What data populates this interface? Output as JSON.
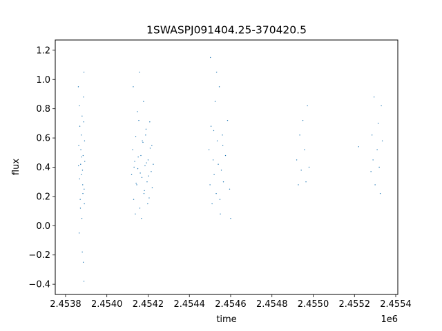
{
  "chart_data": {
    "type": "scatter",
    "title": "1SWASPJ091404.25-370420.5",
    "xlabel": "time",
    "ylabel": "flux",
    "x_offset_label": "1e6",
    "xlim": [
      2.45375,
      2.45541
    ],
    "ylim": [
      -0.47,
      1.27
    ],
    "xticks": [
      2.4538,
      2.454,
      2.4542,
      2.4544,
      2.4546,
      2.4548,
      2.455,
      2.4552,
      2.4554
    ],
    "xtick_labels": [
      "2.4538",
      "2.4540",
      "2.4542",
      "2.4544",
      "2.4546",
      "2.4548",
      "2.4550",
      "2.4552",
      "2.4554"
    ],
    "yticks": [
      -0.4,
      -0.2,
      0.0,
      0.2,
      0.4,
      0.6,
      0.8,
      1.0,
      1.2
    ],
    "ytick_labels": [
      "−0.4",
      "−0.2",
      "0.0",
      "0.2",
      "0.4",
      "0.6",
      "0.8",
      "1.0",
      "1.2"
    ],
    "grid": false,
    "marker_color": "#1f77b4",
    "series": [
      {
        "x": [
          2.453862,
          2.453864,
          2.453868,
          2.453871,
          2.453873,
          2.453876,
          2.453879,
          2.453882,
          2.453885,
          2.453888,
          2.45389,
          2.453893,
          2.453866,
          2.453874,
          2.453881,
          2.453887,
          2.453891,
          2.453869,
          2.453877,
          2.453884,
          2.453889,
          2.453892,
          2.453863,
          2.453872,
          2.45388,
          2.453886,
          2.453878,
          2.453867,
          2.453883,
          2.453889
        ],
        "y": [
          0.95,
          0.55,
          0.32,
          0.18,
          0.42,
          0.62,
          0.05,
          0.38,
          0.48,
          0.71,
          0.25,
          0.44,
          -0.05,
          0.52,
          -0.18,
          0.88,
          0.15,
          0.68,
          0.35,
          0.22,
          1.05,
          0.58,
          0.41,
          0.12,
          0.75,
          -0.25,
          0.47,
          0.82,
          0.28,
          -0.38
        ]
      },
      {
        "x": [
          2.45412,
          2.454125,
          2.45413,
          2.454135,
          2.45414,
          2.454145,
          2.45415,
          2.454155,
          2.45416,
          2.454165,
          2.45417,
          2.454175,
          2.45418,
          2.454185,
          2.45419,
          2.454195,
          2.4542,
          2.454205,
          2.45421,
          2.454215,
          2.45422,
          2.454225,
          2.454128,
          2.454138,
          2.454148,
          2.454158,
          2.454168,
          2.454178,
          2.454188,
          2.454198,
          2.454208,
          2.454218,
          2.454132,
          2.454142,
          2.454152,
          2.454162,
          2.454172,
          2.454182,
          2.454192,
          2.454202
        ],
        "y": [
          0.35,
          0.52,
          0.18,
          0.44,
          0.61,
          0.28,
          0.39,
          0.72,
          0.12,
          0.48,
          0.33,
          0.57,
          0.22,
          0.41,
          0.66,
          0.3,
          0.45,
          0.19,
          0.53,
          0.37,
          0.26,
          0.42,
          0.95,
          0.08,
          0.78,
          1.05,
          0.05,
          0.85,
          0.62,
          0.15,
          0.71,
          0.55,
          0.4,
          0.29,
          0.47,
          0.36,
          0.58,
          0.24,
          0.43,
          0.34
        ]
      },
      {
        "x": [
          2.454495,
          2.4545,
          2.454505,
          2.45451,
          2.454515,
          2.45452,
          2.454525,
          2.45453,
          2.454535,
          2.45454,
          2.454545,
          2.45455,
          2.454555,
          2.45456,
          2.454565,
          2.454575,
          2.454585,
          2.454595,
          2.4546,
          2.454502,
          2.454518,
          2.454532,
          2.454548,
          2.454562
        ],
        "y": [
          0.52,
          0.28,
          0.68,
          0.15,
          0.45,
          0.35,
          0.85,
          0.22,
          0.58,
          0.42,
          0.95,
          0.08,
          0.38,
          0.62,
          0.3,
          0.48,
          0.72,
          0.25,
          0.05,
          1.15,
          0.65,
          1.05,
          0.18,
          0.55
        ]
      },
      {
        "x": [
          2.45492,
          2.454928,
          2.454935,
          2.454942,
          2.45495,
          2.454958,
          2.454965,
          2.454972,
          2.45498
        ],
        "y": [
          0.45,
          0.28,
          0.62,
          0.38,
          0.72,
          0.52,
          0.3,
          0.82,
          0.4
        ]
      },
      {
        "x": [
          2.45522,
          2.45528,
          2.455285,
          2.45529,
          2.455295,
          2.4553,
          2.45531,
          2.455315,
          2.45532,
          2.455325,
          2.45533,
          2.455335
        ],
        "y": [
          0.54,
          0.37,
          0.62,
          0.45,
          0.88,
          0.28,
          0.52,
          0.7,
          0.4,
          0.22,
          0.82,
          0.58
        ]
      }
    ]
  }
}
